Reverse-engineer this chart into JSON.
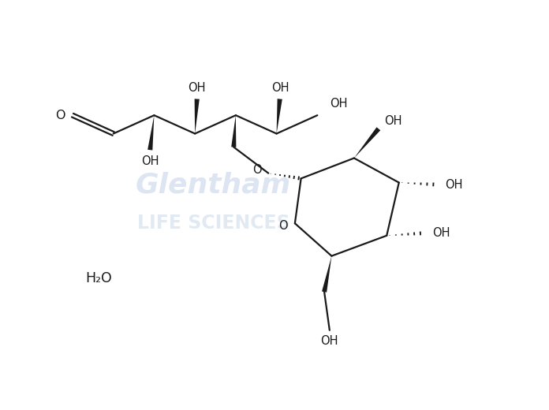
{
  "background_color": "#ffffff",
  "line_color": "#1a1a1a",
  "watermark_color": "#c5d5e8",
  "lw": 1.6,
  "fs": 10.5,
  "xlim": [
    0,
    13
  ],
  "ylim": [
    0,
    10
  ]
}
